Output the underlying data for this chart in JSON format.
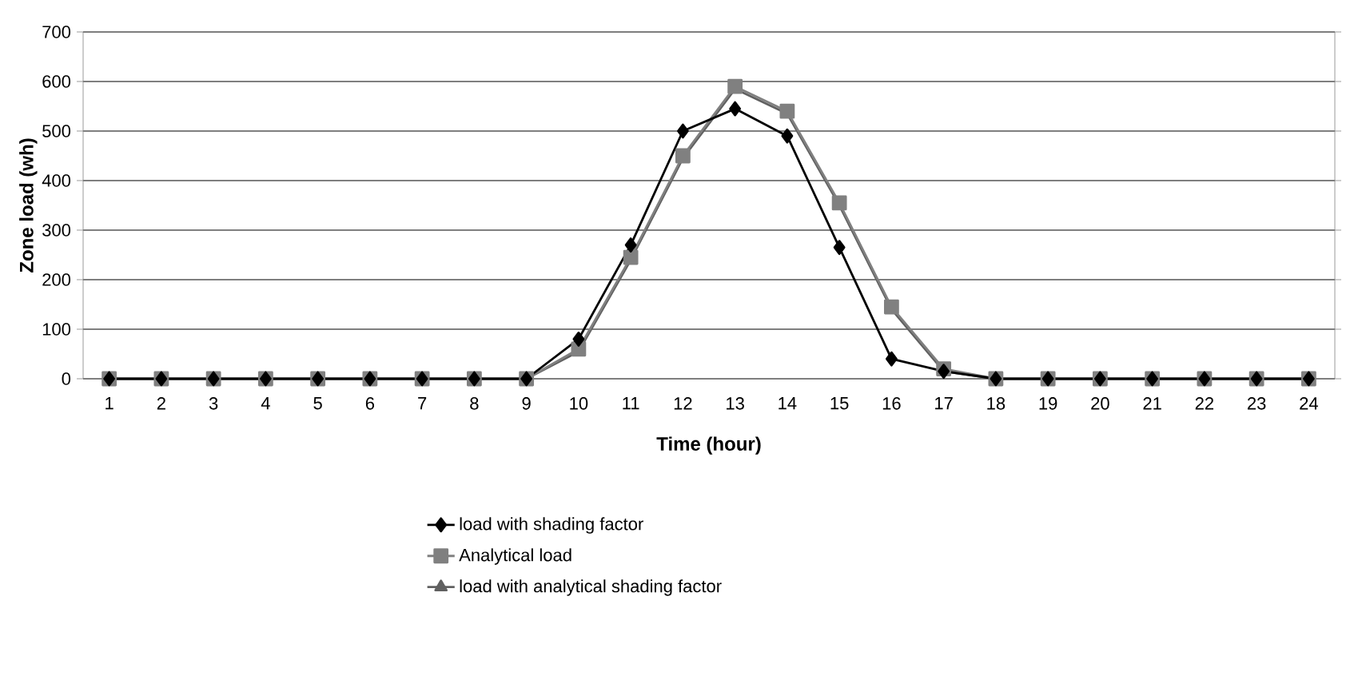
{
  "chart_data": {
    "type": "line",
    "xlabel": "Time (hour)",
    "ylabel": "Zone load (wh)",
    "categories": [
      "1",
      "2",
      "3",
      "4",
      "5",
      "6",
      "7",
      "8",
      "9",
      "10",
      "11",
      "12",
      "13",
      "14",
      "15",
      "16",
      "17",
      "18",
      "19",
      "20",
      "21",
      "22",
      "23",
      "24"
    ],
    "series": [
      {
        "name": "load with shading factor",
        "color": "#000000",
        "marker": "diamond",
        "values": [
          0,
          0,
          0,
          0,
          0,
          0,
          0,
          0,
          0,
          80,
          270,
          500,
          545,
          490,
          265,
          40,
          15,
          0,
          0,
          0,
          0,
          0,
          0,
          0
        ]
      },
      {
        "name": "Analytical load",
        "color": "#808080",
        "marker": "square",
        "values": [
          0,
          0,
          0,
          0,
          0,
          0,
          0,
          0,
          0,
          60,
          245,
          450,
          590,
          540,
          355,
          145,
          20,
          0,
          0,
          0,
          0,
          0,
          0,
          0
        ]
      },
      {
        "name": "load with analytical shading factor",
        "color": "#606060",
        "marker": "triangle",
        "values": [
          0,
          0,
          0,
          0,
          0,
          0,
          0,
          0,
          0,
          55,
          240,
          445,
          585,
          535,
          350,
          140,
          15,
          0,
          0,
          0,
          0,
          0,
          0,
          0
        ]
      }
    ],
    "ylim": [
      0,
      700
    ],
    "yticks": [
      0,
      100,
      200,
      300,
      400,
      500,
      600,
      700
    ],
    "grid": "y",
    "legend": "bottom",
    "line_style": "solid"
  }
}
